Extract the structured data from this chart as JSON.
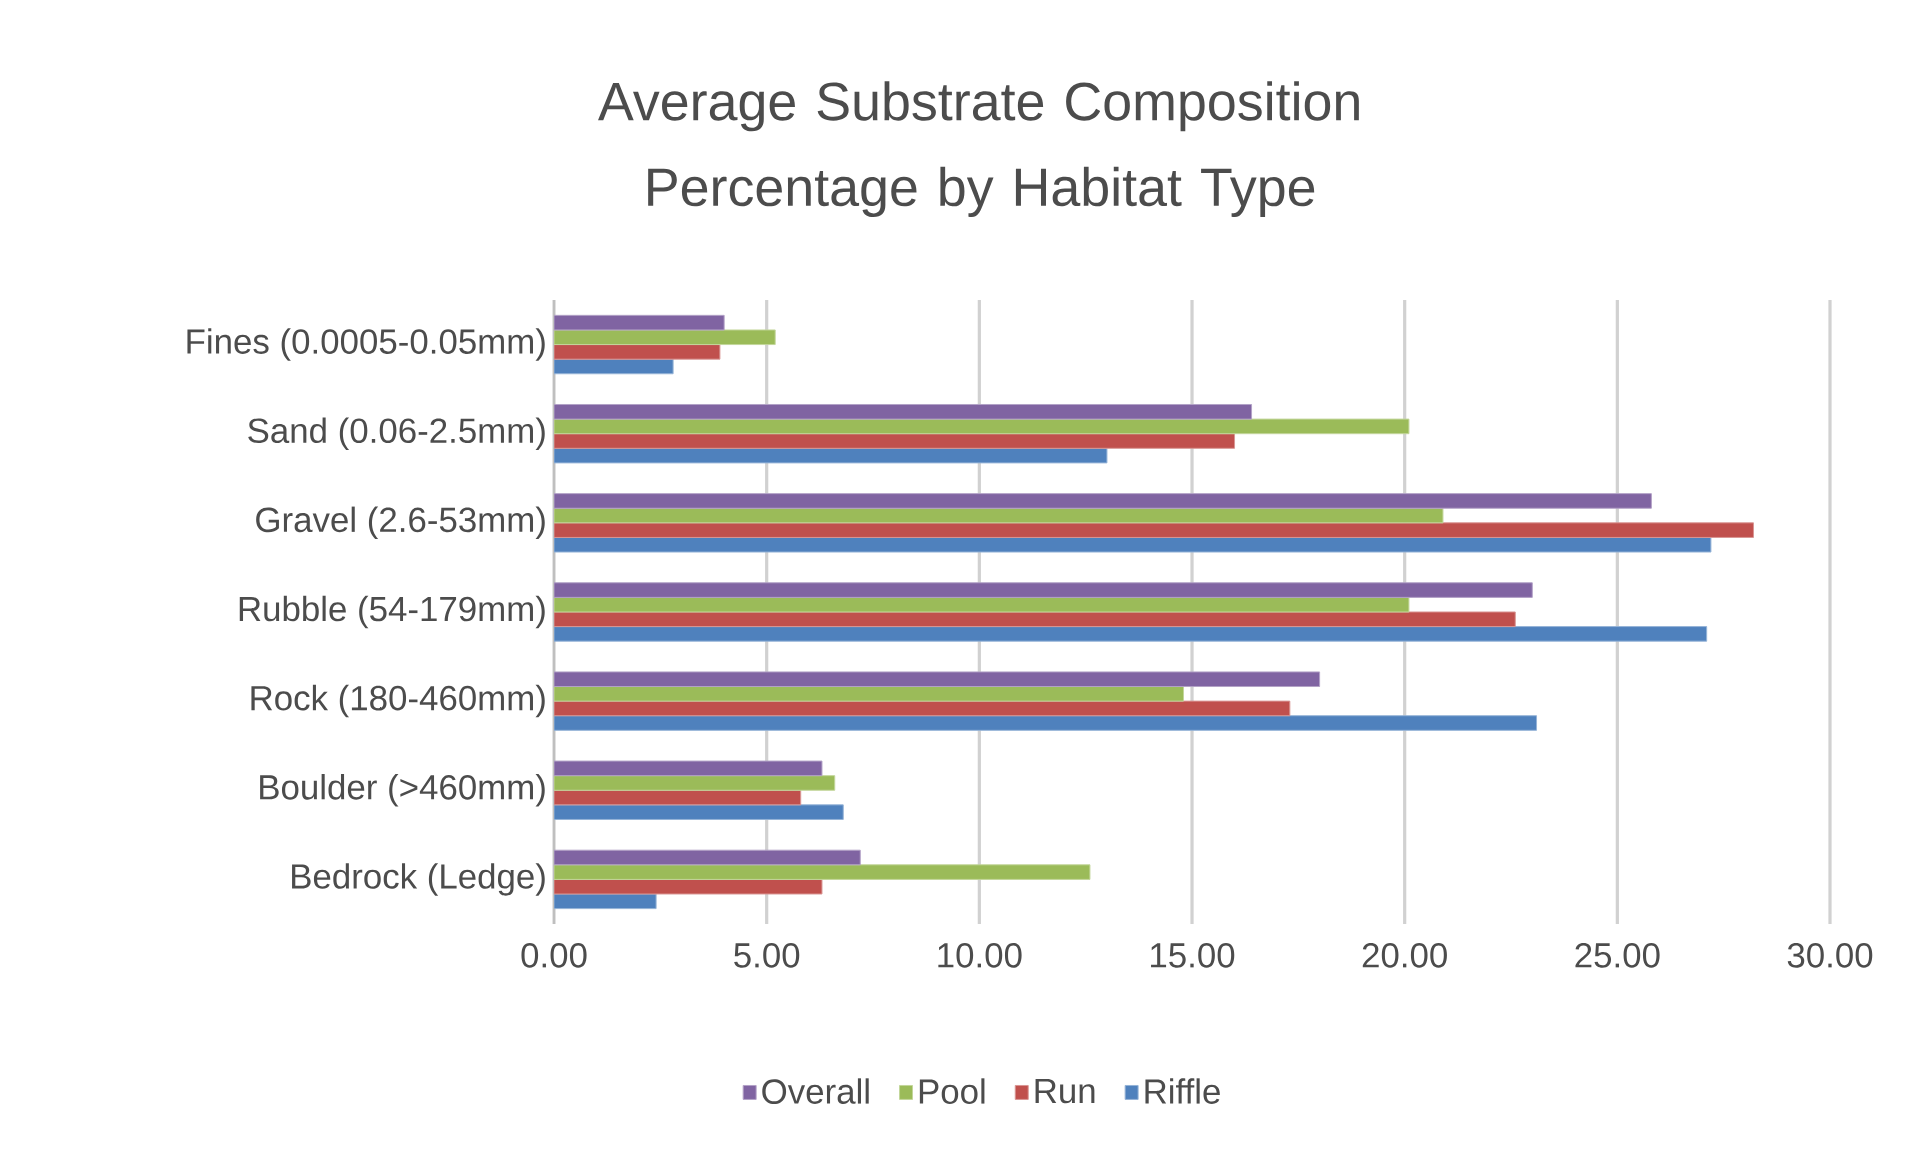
{
  "chart_data": {
    "type": "bar",
    "orientation": "horizontal",
    "title": "Average Substrate Composition Percentage by Habitat Type",
    "categories": [
      "Fines (0.0005-0.05mm)",
      "Sand (0.06-2.5mm)",
      "Gravel (2.6-53mm)",
      "Rubble (54-179mm)",
      "Rock (180-460mm)",
      "Boulder (>460mm)",
      "Bedrock (Ledge)"
    ],
    "series": [
      {
        "name": "Overall",
        "color": "#8064a2",
        "values": [
          4.0,
          16.4,
          25.8,
          23.0,
          18.0,
          6.3,
          7.2
        ]
      },
      {
        "name": "Pool",
        "color": "#9bbb59",
        "values": [
          5.2,
          20.1,
          20.9,
          20.1,
          14.8,
          6.6,
          12.6
        ]
      },
      {
        "name": "Run",
        "color": "#c0504d",
        "values": [
          3.9,
          16.0,
          28.2,
          22.6,
          17.3,
          5.8,
          6.3
        ]
      },
      {
        "name": "Riffle",
        "color": "#4f81bd",
        "values": [
          2.8,
          13.0,
          27.2,
          27.1,
          23.1,
          6.8,
          2.4
        ]
      }
    ],
    "xlim": [
      0,
      30
    ],
    "xticks": [
      {
        "value": 0,
        "label": "0.00"
      },
      {
        "value": 5,
        "label": "5.00"
      },
      {
        "value": 10,
        "label": "10.00"
      },
      {
        "value": 15,
        "label": "15.00"
      },
      {
        "value": 20,
        "label": "20.00"
      },
      {
        "value": 25,
        "label": "25.00"
      },
      {
        "value": 30,
        "label": "30.00"
      }
    ],
    "grid": "x",
    "legend": "bottom"
  }
}
